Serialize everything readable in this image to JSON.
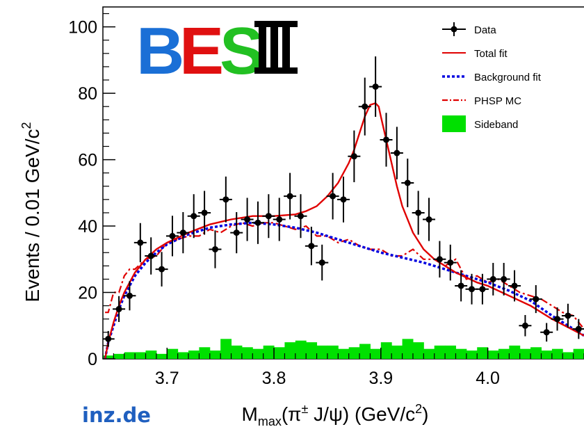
{
  "logo": {
    "letters": [
      "B",
      "E",
      "S",
      "III"
    ]
  },
  "watermark": "inz.de",
  "chart_data": {
    "type": "scatter",
    "xlabel_parts": {
      "main": "M",
      "sub": "max",
      "mid": "(π",
      "sup": "±",
      "end": " J/ψ) (GeV/c",
      "sup2": "2",
      "close": ")"
    },
    "ylabel_parts": {
      "main": "Events / 0.01 GeV/c",
      "sup": "2"
    },
    "xlim": [
      3.64,
      4.09
    ],
    "ylim": [
      0,
      106
    ],
    "x_ticks": [
      "3.7",
      "3.8",
      "3.9",
      "4.0"
    ],
    "x_tick_values": [
      3.7,
      3.8,
      3.9,
      4.0
    ],
    "y_ticks": [
      "0",
      "20",
      "40",
      "60",
      "80",
      "100"
    ],
    "y_tick_values": [
      0,
      20,
      40,
      60,
      80,
      100
    ],
    "legend_position": "top-right",
    "legend": [
      "Data",
      "Total fit",
      "Background fit",
      "PHSP MC",
      "Sideband"
    ],
    "colors": {
      "data": "#000000",
      "total_fit": "#e00000",
      "background_fit": "#0000e0",
      "phsp": "#e00000",
      "sideband": "#00e000",
      "logo_b": "#1a6fd6",
      "logo_e": "#e01010",
      "logo_s": "#22c022",
      "logo_iii": "#000000"
    },
    "series": [
      {
        "name": "Data",
        "kind": "points_with_errors",
        "x": [
          3.645,
          3.655,
          3.665,
          3.675,
          3.685,
          3.695,
          3.705,
          3.715,
          3.725,
          3.735,
          3.745,
          3.755,
          3.765,
          3.775,
          3.785,
          3.795,
          3.805,
          3.815,
          3.825,
          3.835,
          3.845,
          3.855,
          3.865,
          3.875,
          3.885,
          3.895,
          3.905,
          3.915,
          3.925,
          3.935,
          3.945,
          3.955,
          3.965,
          3.975,
          3.985,
          3.995,
          4.005,
          4.015,
          4.025,
          4.035,
          4.045,
          4.055,
          4.065,
          4.075,
          4.085
        ],
        "y": [
          6,
          15,
          19,
          35,
          31,
          27,
          37,
          38,
          43,
          44,
          33,
          48,
          38,
          42,
          41,
          43,
          42,
          49,
          43,
          34,
          29,
          49,
          48,
          61,
          76,
          82,
          66,
          62,
          53,
          44,
          42,
          30,
          29,
          22,
          21,
          21,
          24,
          24,
          22,
          10,
          18,
          8,
          12,
          13,
          9
        ],
        "err": [
          2.4,
          3.9,
          4.4,
          5.9,
          5.6,
          5.2,
          6.1,
          6.2,
          6.6,
          6.6,
          5.7,
          6.9,
          6.2,
          6.5,
          6.4,
          6.6,
          6.5,
          7,
          6.6,
          5.8,
          5.4,
          7,
          6.9,
          7.8,
          8.7,
          9.1,
          8.1,
          7.9,
          7.3,
          6.6,
          6.5,
          5.5,
          5.4,
          4.7,
          4.6,
          4.6,
          4.9,
          4.9,
          4.7,
          3.2,
          4.2,
          2.8,
          3.5,
          3.6,
          3
        ]
      },
      {
        "name": "Total fit",
        "kind": "line",
        "x": [
          3.642,
          3.645,
          3.65,
          3.655,
          3.66,
          3.67,
          3.68,
          3.69,
          3.7,
          3.72,
          3.74,
          3.76,
          3.78,
          3.8,
          3.82,
          3.83,
          3.84,
          3.85,
          3.86,
          3.87,
          3.875,
          3.88,
          3.885,
          3.89,
          3.895,
          3.898,
          3.9,
          3.905,
          3.91,
          3.915,
          3.92,
          3.93,
          3.94,
          3.95,
          3.96,
          3.97,
          3.98,
          3.99,
          4.0,
          4.02,
          4.04,
          4.06,
          4.09
        ],
        "y": [
          0,
          5,
          11,
          16,
          20,
          26,
          30,
          33,
          35,
          38,
          40.5,
          42,
          43,
          43,
          43.5,
          44.5,
          46,
          49,
          53,
          59,
          63,
          68,
          73,
          76.5,
          77,
          76,
          73,
          66,
          59,
          52,
          46,
          38,
          33,
          30,
          28,
          26,
          24.5,
          23,
          22,
          19,
          16,
          12,
          7
        ]
      },
      {
        "name": "Background fit",
        "kind": "line",
        "x": [
          3.642,
          3.645,
          3.65,
          3.655,
          3.66,
          3.67,
          3.68,
          3.69,
          3.7,
          3.72,
          3.74,
          3.76,
          3.78,
          3.8,
          3.82,
          3.84,
          3.86,
          3.88,
          3.9,
          3.92,
          3.94,
          3.96,
          3.98,
          4.0,
          4.02,
          4.04,
          4.06,
          4.09
        ],
        "y": [
          0,
          5,
          10,
          15,
          19,
          25,
          29,
          32,
          34.5,
          37.5,
          39.5,
          40.5,
          41,
          40.5,
          39.5,
          38,
          36,
          34,
          32,
          30.5,
          29,
          27,
          25,
          23,
          20.5,
          17.5,
          13,
          7
        ]
      },
      {
        "name": "PHSP MC",
        "kind": "line",
        "x": [
          3.642,
          3.645,
          3.65,
          3.655,
          3.66,
          3.665,
          3.67,
          3.68,
          3.69,
          3.7,
          3.71,
          3.72,
          3.73,
          3.74,
          3.75,
          3.76,
          3.77,
          3.78,
          3.79,
          3.8,
          3.81,
          3.82,
          3.83,
          3.84,
          3.85,
          3.86,
          3.87,
          3.88,
          3.89,
          3.9,
          3.91,
          3.92,
          3.93,
          3.94,
          3.95,
          3.96,
          3.97,
          3.98,
          3.99,
          4.0,
          4.01,
          4.02,
          4.03,
          4.04,
          4.05,
          4.06,
          4.07,
          4.08,
          4.09
        ],
        "y": [
          14,
          14,
          20,
          20,
          25,
          27,
          27,
          30,
          31,
          35,
          36,
          37,
          37,
          39,
          38,
          40,
          41,
          40,
          41,
          41,
          40,
          39,
          40,
          37,
          37,
          35,
          36,
          34,
          33,
          33,
          31,
          31,
          33,
          30,
          30,
          28,
          30,
          24,
          25,
          23,
          24,
          22,
          20,
          19,
          18,
          16,
          14,
          13,
          9
        ]
      },
      {
        "name": "Sideband",
        "kind": "histogram",
        "x": [
          3.645,
          3.655,
          3.665,
          3.675,
          3.685,
          3.695,
          3.705,
          3.715,
          3.725,
          3.735,
          3.745,
          3.755,
          3.765,
          3.775,
          3.785,
          3.795,
          3.805,
          3.815,
          3.825,
          3.835,
          3.845,
          3.855,
          3.865,
          3.875,
          3.885,
          3.895,
          3.905,
          3.915,
          3.925,
          3.935,
          3.945,
          3.955,
          3.965,
          3.975,
          3.985,
          3.995,
          4.005,
          4.015,
          4.025,
          4.035,
          4.045,
          4.055,
          4.065,
          4.075,
          4.085
        ],
        "y": [
          1,
          1.5,
          2,
          2,
          2.5,
          1.5,
          3,
          2,
          2.5,
          3.5,
          2.5,
          6,
          4,
          3.5,
          3,
          4,
          3.5,
          5,
          5.5,
          5,
          4,
          4,
          3,
          3.5,
          4.5,
          3,
          5,
          4,
          6,
          5,
          3,
          4,
          4,
          3,
          2.5,
          3.5,
          2.5,
          3,
          4,
          3,
          3.5,
          2.5,
          3,
          2,
          3
        ]
      }
    ]
  }
}
